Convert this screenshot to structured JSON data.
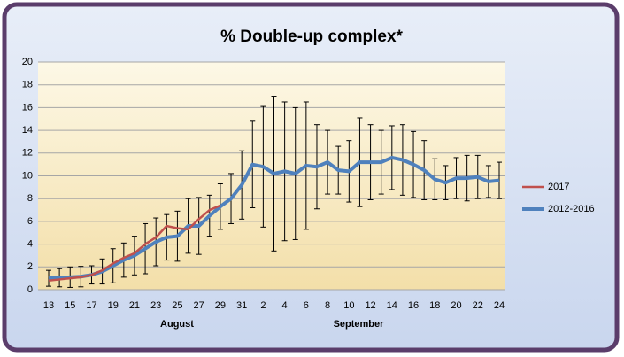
{
  "chart_data": {
    "type": "line",
    "title": "% Double-up complex*",
    "categories": [
      "13",
      null,
      "15",
      null,
      "17",
      null,
      "19",
      null,
      "21",
      null,
      "23",
      null,
      "25",
      null,
      "27",
      null,
      "29",
      null,
      "31",
      null,
      "2",
      null,
      "4",
      null,
      "6",
      null,
      "8",
      null,
      "10",
      null,
      "12",
      null,
      "14",
      null,
      "16",
      null,
      "18",
      null,
      "20",
      null,
      "22",
      null,
      "24"
    ],
    "annotations": [
      "August",
      "September"
    ],
    "series": [
      {
        "name": "2017",
        "color": "#c0504d",
        "values": [
          0.8,
          0.9,
          1.0,
          1.1,
          1.3,
          1.7,
          2.3,
          2.8,
          3.2,
          4.0,
          4.6,
          5.6,
          5.4,
          5.3,
          6.2,
          7.0,
          7.4,
          null,
          null,
          null,
          null,
          null,
          null,
          null,
          null,
          null,
          null,
          null,
          null,
          null,
          null,
          null,
          null,
          null,
          null,
          null,
          null,
          null,
          null,
          null,
          null,
          null,
          null
        ]
      },
      {
        "name": "2012-2016",
        "color": "#4f81bd",
        "values": [
          1.0,
          1.05,
          1.1,
          1.15,
          1.3,
          1.6,
          2.1,
          2.6,
          3.0,
          3.6,
          4.2,
          4.6,
          4.7,
          5.6,
          5.6,
          6.5,
          7.3,
          8.0,
          9.2,
          11.0,
          10.8,
          10.2,
          10.4,
          10.2,
          10.9,
          10.8,
          11.2,
          10.5,
          10.4,
          11.2,
          11.2,
          11.2,
          11.6,
          11.4,
          11.0,
          10.5,
          9.7,
          9.4,
          9.8,
          9.8,
          9.9,
          9.5,
          9.6
        ],
        "errors": [
          0.7,
          0.8,
          0.9,
          0.9,
          0.8,
          1.1,
          1.5,
          1.5,
          1.7,
          2.2,
          2.1,
          2.0,
          2.2,
          2.4,
          2.5,
          1.8,
          2.0,
          2.2,
          3.0,
          3.8,
          5.3,
          6.8,
          6.1,
          5.8,
          5.6,
          3.7,
          2.8,
          2.1,
          2.7,
          3.9,
          3.3,
          2.8,
          2.8,
          3.1,
          2.9,
          2.6,
          1.8,
          1.5,
          1.8,
          2.0,
          1.9,
          1.4,
          1.6
        ]
      }
    ],
    "ylim": [
      0,
      20
    ],
    "yticks": [
      0,
      2,
      4,
      6,
      8,
      10,
      12,
      14,
      16,
      18,
      20
    ],
    "grid": true,
    "legend": "right"
  }
}
